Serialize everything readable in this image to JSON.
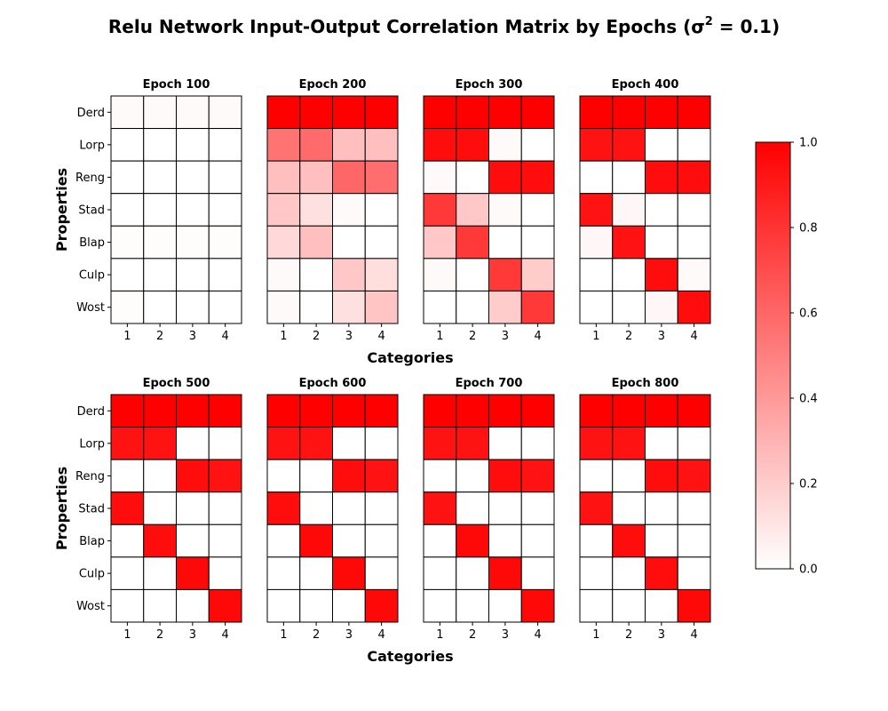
{
  "chart_data": {
    "type": "heatmap",
    "title": "Relu Network Input-Output Correlation Matrix by Epochs (σ² = 0.1)",
    "title_main": "Relu Network Input-Output Correlation Matrix by Epochs (σ",
    "title_sup": "2",
    "title_end": " = 0.1)",
    "xlabel": "Categories",
    "ylabel": "Properties",
    "rows": [
      "Derd",
      "Lorp",
      "Reng",
      "Stad",
      "Blap",
      "Culp",
      "Wost"
    ],
    "columns": [
      "1",
      "2",
      "3",
      "4"
    ],
    "colorbar": {
      "min": 0.0,
      "max": 1.0,
      "ticks": [
        "0.0",
        "0.2",
        "0.4",
        "0.6",
        "0.8",
        "1.0"
      ],
      "low_color": "#ffffff",
      "high_color": "#ff0000"
    },
    "panels": [
      {
        "title": "Epoch 100",
        "values": [
          [
            0.02,
            0.02,
            0.02,
            0.02
          ],
          [
            0.0,
            0.0,
            0.0,
            0.0
          ],
          [
            0.0,
            0.0,
            0.0,
            0.0
          ],
          [
            0.0,
            0.0,
            0.0,
            0.0
          ],
          [
            0.01,
            0.01,
            0.01,
            0.01
          ],
          [
            0.0,
            0.0,
            0.0,
            0.0
          ],
          [
            0.01,
            0.0,
            0.0,
            0.0
          ]
        ]
      },
      {
        "title": "Epoch 200",
        "values": [
          [
            1.0,
            1.0,
            1.0,
            1.0
          ],
          [
            0.55,
            0.58,
            0.25,
            0.25
          ],
          [
            0.25,
            0.25,
            0.6,
            0.57
          ],
          [
            0.22,
            0.12,
            0.02,
            0.0
          ],
          [
            0.15,
            0.25,
            0.0,
            0.0
          ],
          [
            0.02,
            0.0,
            0.22,
            0.13
          ],
          [
            0.02,
            0.0,
            0.12,
            0.23
          ]
        ]
      },
      {
        "title": "Epoch 300",
        "values": [
          [
            1.0,
            1.0,
            1.0,
            1.0
          ],
          [
            0.95,
            0.95,
            0.02,
            0.0
          ],
          [
            0.02,
            0.0,
            0.95,
            0.95
          ],
          [
            0.78,
            0.22,
            0.02,
            0.0
          ],
          [
            0.22,
            0.78,
            0.0,
            0.0
          ],
          [
            0.02,
            0.0,
            0.78,
            0.2
          ],
          [
            0.0,
            0.0,
            0.2,
            0.78
          ]
        ]
      },
      {
        "title": "Epoch 400",
        "values": [
          [
            1.0,
            1.0,
            1.0,
            1.0
          ],
          [
            0.93,
            0.93,
            0.0,
            0.0
          ],
          [
            0.0,
            0.0,
            0.95,
            0.95
          ],
          [
            0.93,
            0.03,
            0.0,
            0.0
          ],
          [
            0.03,
            0.93,
            0.0,
            0.0
          ],
          [
            0.0,
            0.0,
            0.95,
            0.02
          ],
          [
            0.0,
            0.0,
            0.03,
            0.95
          ]
        ]
      },
      {
        "title": "Epoch 500",
        "values": [
          [
            1.0,
            1.0,
            1.0,
            1.0
          ],
          [
            0.93,
            0.93,
            0.0,
            0.0
          ],
          [
            0.0,
            0.0,
            0.95,
            0.93
          ],
          [
            0.95,
            0.0,
            0.0,
            0.0
          ],
          [
            0.0,
            0.95,
            0.0,
            0.0
          ],
          [
            0.0,
            0.0,
            0.97,
            0.0
          ],
          [
            0.0,
            0.0,
            0.0,
            0.97
          ]
        ]
      },
      {
        "title": "Epoch 600",
        "values": [
          [
            1.0,
            1.0,
            1.0,
            1.0
          ],
          [
            0.93,
            0.93,
            0.0,
            0.0
          ],
          [
            0.0,
            0.0,
            0.95,
            0.93
          ],
          [
            0.95,
            0.0,
            0.0,
            0.0
          ],
          [
            0.0,
            0.97,
            0.0,
            0.0
          ],
          [
            0.0,
            0.0,
            0.97,
            0.0
          ],
          [
            0.0,
            0.0,
            0.0,
            0.97
          ]
        ]
      },
      {
        "title": "Epoch 700",
        "values": [
          [
            1.0,
            1.0,
            1.0,
            1.0
          ],
          [
            0.93,
            0.93,
            0.0,
            0.0
          ],
          [
            0.0,
            0.0,
            0.95,
            0.93
          ],
          [
            0.93,
            0.0,
            0.0,
            0.0
          ],
          [
            0.0,
            0.97,
            0.0,
            0.0
          ],
          [
            0.0,
            0.0,
            0.97,
            0.0
          ],
          [
            0.0,
            0.0,
            0.0,
            0.97
          ]
        ]
      },
      {
        "title": "Epoch 800",
        "values": [
          [
            1.0,
            1.0,
            1.0,
            1.0
          ],
          [
            0.93,
            0.93,
            0.0,
            0.0
          ],
          [
            0.0,
            0.0,
            0.95,
            0.93
          ],
          [
            0.93,
            0.0,
            0.0,
            0.0
          ],
          [
            0.0,
            0.95,
            0.0,
            0.0
          ],
          [
            0.0,
            0.0,
            0.95,
            0.0
          ],
          [
            0.0,
            0.0,
            0.0,
            0.97
          ]
        ]
      }
    ]
  }
}
